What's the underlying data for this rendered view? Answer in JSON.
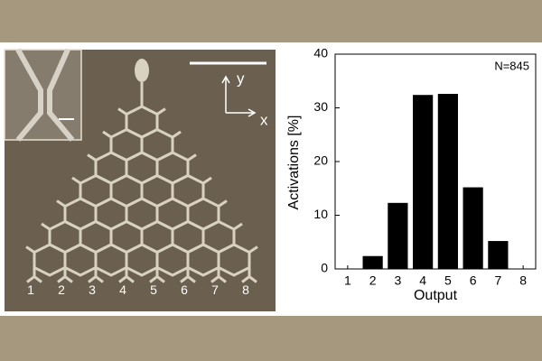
{
  "chart_data": {
    "type": "bar",
    "x_label": "Output",
    "y_label": "Activations [%]",
    "annotation": "N=845",
    "categories": [
      "1",
      "2",
      "3",
      "4",
      "5",
      "6",
      "7",
      "8"
    ],
    "values": [
      0,
      2.4,
      12.3,
      32.4,
      32.6,
      15.2,
      5.2,
      0
    ],
    "color": "#000000",
    "ylim": [
      0,
      40
    ],
    "yticks": [
      0,
      10,
      20,
      30,
      40
    ],
    "grid": false
  },
  "micrograph": {
    "outputs": [
      "1",
      "2",
      "3",
      "4",
      "5",
      "6",
      "7",
      "8"
    ],
    "axis_labels": [
      "y",
      "x"
    ]
  }
}
